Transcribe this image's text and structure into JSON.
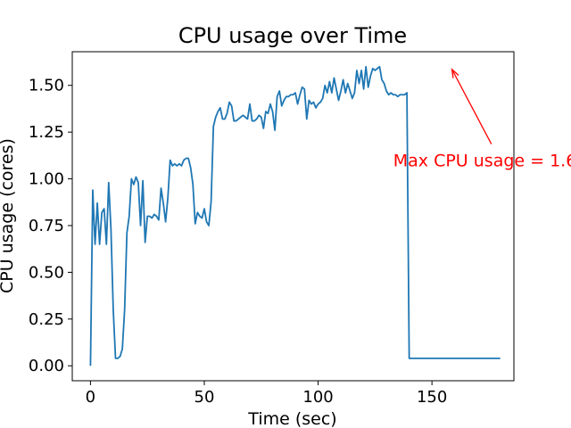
{
  "colors": {
    "line": "#1f77b4",
    "annotation": "#ff0000",
    "axis": "#000000"
  },
  "chart_data": {
    "type": "line",
    "title": "CPU usage over Time",
    "xlabel": "Time (sec)",
    "ylabel": "CPU usage (cores)",
    "xlim": [
      -8,
      186
    ],
    "ylim": [
      -0.08,
      1.68
    ],
    "xticks": [
      0,
      50,
      100,
      150
    ],
    "yticks": [
      0.0,
      0.25,
      0.5,
      0.75,
      1.0,
      1.25,
      1.5
    ],
    "xtick_labels": [
      "0",
      "50",
      "100",
      "150"
    ],
    "ytick_labels": [
      "0.00",
      "0.25",
      "0.50",
      "0.75",
      "1.00",
      "1.25",
      "1.50"
    ],
    "grid": false,
    "series": [
      {
        "name": "CPU usage",
        "x": [
          0,
          1,
          2,
          3,
          4,
          5,
          6,
          7,
          8,
          9,
          10,
          11,
          12,
          13,
          14,
          15,
          16,
          17,
          18,
          19,
          20,
          21,
          22,
          23,
          24,
          25,
          26,
          27,
          28,
          29,
          30,
          31,
          32,
          33,
          34,
          35,
          36,
          37,
          38,
          39,
          40,
          41,
          42,
          43,
          44,
          45,
          46,
          47,
          48,
          49,
          50,
          51,
          52,
          53,
          54,
          55,
          56,
          57,
          58,
          59,
          60,
          61,
          62,
          63,
          64,
          65,
          66,
          67,
          68,
          69,
          70,
          71,
          72,
          73,
          74,
          75,
          76,
          77,
          78,
          79,
          80,
          81,
          82,
          83,
          84,
          85,
          86,
          87,
          88,
          89,
          90,
          91,
          92,
          93,
          94,
          95,
          96,
          97,
          98,
          99,
          100,
          101,
          102,
          103,
          104,
          105,
          106,
          107,
          108,
          109,
          110,
          111,
          112,
          113,
          114,
          115,
          116,
          117,
          118,
          119,
          120,
          121,
          122,
          123,
          124,
          125,
          126,
          127,
          128,
          129,
          130,
          131,
          132,
          133,
          134,
          135,
          136,
          137,
          138,
          139,
          140,
          141,
          142,
          143,
          144,
          145,
          146,
          147,
          148,
          149,
          150,
          151,
          152,
          153,
          154,
          155,
          156,
          157,
          158,
          159,
          160,
          161,
          162,
          163,
          164,
          165,
          166,
          167,
          168,
          169,
          170,
          171,
          172,
          173,
          174,
          175,
          176,
          177,
          178,
          179,
          180
        ],
        "values": [
          0.0,
          0.94,
          0.65,
          0.87,
          0.65,
          0.82,
          0.84,
          0.65,
          0.98,
          0.73,
          0.3,
          0.04,
          0.04,
          0.05,
          0.09,
          0.3,
          0.71,
          0.8,
          1.0,
          0.97,
          1.01,
          0.98,
          0.75,
          0.99,
          0.66,
          0.8,
          0.8,
          0.79,
          0.81,
          0.8,
          0.78,
          0.95,
          0.87,
          0.77,
          0.9,
          1.1,
          1.07,
          1.08,
          1.07,
          1.08,
          1.07,
          1.1,
          1.11,
          1.11,
          1.06,
          0.97,
          0.76,
          0.82,
          0.8,
          0.79,
          0.84,
          0.77,
          0.75,
          0.88,
          1.28,
          1.33,
          1.36,
          1.38,
          1.32,
          1.32,
          1.35,
          1.41,
          1.39,
          1.31,
          1.31,
          1.32,
          1.33,
          1.34,
          1.33,
          1.32,
          1.4,
          1.31,
          1.31,
          1.32,
          1.34,
          1.33,
          1.27,
          1.36,
          1.35,
          1.4,
          1.36,
          1.26,
          1.44,
          1.47,
          1.39,
          1.42,
          1.44,
          1.44,
          1.45,
          1.45,
          1.46,
          1.4,
          1.45,
          1.49,
          1.48,
          1.32,
          1.42,
          1.4,
          1.41,
          1.38,
          1.4,
          1.41,
          1.43,
          1.5,
          1.46,
          1.52,
          1.46,
          1.54,
          1.48,
          1.42,
          1.47,
          1.53,
          1.46,
          1.51,
          1.47,
          1.43,
          1.46,
          1.58,
          1.51,
          1.58,
          1.48,
          1.6,
          1.49,
          1.55,
          1.59,
          1.58,
          1.59,
          1.6,
          1.53,
          1.51,
          1.47,
          1.45,
          1.46,
          1.45,
          1.45,
          1.44,
          1.45,
          1.45,
          1.45,
          1.46,
          0.04,
          0.04,
          0.04,
          0.04,
          0.04,
          0.04,
          0.04,
          0.04,
          0.04,
          0.04,
          0.04,
          0.04,
          0.04,
          0.04,
          0.04,
          0.04,
          0.04,
          0.04,
          0.04,
          0.04,
          0.04,
          0.04,
          0.04,
          0.04,
          0.04,
          0.04,
          0.04,
          0.04,
          0.04,
          0.04,
          0.04,
          0.04,
          0.04,
          0.04,
          0.04,
          0.04,
          0.04,
          0.04,
          0.04,
          0.04,
          0.04
        ]
      }
    ],
    "annotation": {
      "text": "Max CPU usage = 1.6",
      "point": [
        158,
        1.6
      ],
      "text_anchor_data": [
        133,
        1.1
      ]
    }
  }
}
